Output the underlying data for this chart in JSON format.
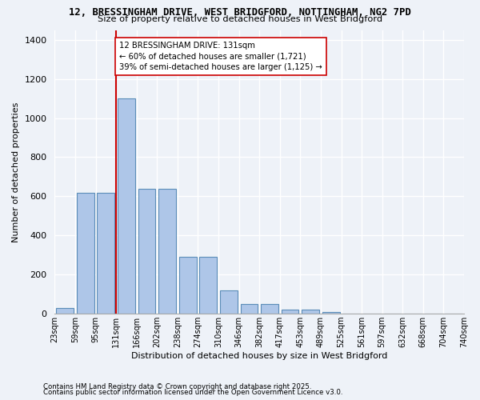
{
  "title1": "12, BRESSINGHAM DRIVE, WEST BRIDGFORD, NOTTINGHAM, NG2 7PD",
  "title2": "Size of property relative to detached houses in West Bridgford",
  "xlabel": "Distribution of detached houses by size in West Bridgford",
  "ylabel": "Number of detached properties",
  "bar_values": [
    30,
    620,
    620,
    1100,
    640,
    640,
    290,
    290,
    120,
    50,
    50,
    20,
    20,
    10,
    0,
    0,
    0,
    0,
    0,
    0
  ],
  "bin_labels": [
    "23sqm",
    "59sqm",
    "95sqm",
    "131sqm",
    "166sqm",
    "202sqm",
    "238sqm",
    "274sqm",
    "310sqm",
    "346sqm",
    "382sqm",
    "417sqm",
    "453sqm",
    "489sqm",
    "525sqm",
    "561sqm",
    "597sqm",
    "632sqm",
    "668sqm",
    "704sqm",
    "740sqm"
  ],
  "bar_color": "#aec6e8",
  "bar_edge_color": "#5b8db8",
  "vline_x_index": 3,
  "vline_color": "#cc0000",
  "annotation_text": "12 BRESSINGHAM DRIVE: 131sqm\n← 60% of detached houses are smaller (1,721)\n39% of semi-detached houses are larger (1,125) →",
  "annotation_box_color": "#ffffff",
  "annotation_box_edge": "#cc0000",
  "ylim": [
    0,
    1450
  ],
  "yticks": [
    0,
    200,
    400,
    600,
    800,
    1000,
    1200,
    1400
  ],
  "bg_color": "#eef2f8",
  "grid_color": "#ffffff",
  "footer1": "Contains HM Land Registry data © Crown copyright and database right 2025.",
  "footer2": "Contains public sector information licensed under the Open Government Licence v3.0."
}
